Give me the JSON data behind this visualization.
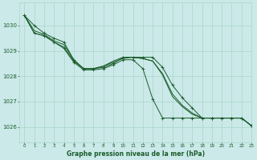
{
  "background_color": "#cbe9e9",
  "grid_color": "#a8d5c8",
  "line_color": "#1a5c2a",
  "xlabel": "Graphe pression niveau de la mer (hPa)",
  "xlim": [
    -0.5,
    23
  ],
  "ylim": [
    1025.4,
    1030.9
  ],
  "yticks": [
    1026,
    1027,
    1028,
    1029,
    1030
  ],
  "xticks": [
    0,
    1,
    2,
    3,
    4,
    5,
    6,
    7,
    8,
    9,
    10,
    11,
    12,
    13,
    14,
    15,
    16,
    17,
    18,
    19,
    20,
    21,
    22,
    23
  ],
  "series": [
    {
      "x": [
        0,
        1,
        2,
        3,
        4,
        5,
        6,
        7,
        8,
        9,
        10,
        11,
        12,
        13,
        14,
        15,
        16,
        17,
        18,
        19,
        20,
        21,
        22,
        23
      ],
      "y": [
        1030.4,
        1030.0,
        1029.7,
        1029.5,
        1029.35,
        1028.65,
        1028.3,
        1028.3,
        1028.35,
        1028.5,
        1028.75,
        1028.75,
        1028.75,
        1028.75,
        1028.35,
        1027.65,
        1027.15,
        1026.75,
        1026.35,
        1026.35,
        1026.35,
        1026.35,
        1026.35,
        1026.05
      ],
      "has_markers": true
    },
    {
      "x": [
        0,
        1,
        2,
        3,
        4,
        5,
        6,
        7,
        8,
        9,
        10,
        11,
        12,
        13,
        14,
        15,
        16,
        17,
        18,
        19,
        20,
        21,
        22,
        23
      ],
      "y": [
        1030.4,
        1029.8,
        1029.65,
        1029.4,
        1029.25,
        1028.65,
        1028.3,
        1028.3,
        1028.4,
        1028.6,
        1028.75,
        1028.75,
        1028.7,
        1028.6,
        1028.1,
        1027.3,
        1026.85,
        1026.55,
        1026.35,
        1026.35,
        1026.35,
        1026.35,
        1026.35,
        1026.05
      ],
      "has_markers": false
    },
    {
      "x": [
        0,
        1,
        2,
        3,
        4,
        5,
        6,
        7,
        8,
        9,
        10,
        11,
        12,
        13,
        14,
        15,
        16,
        17,
        18,
        19,
        20,
        21,
        22,
        23
      ],
      "y": [
        1030.4,
        1029.7,
        1029.6,
        1029.35,
        1029.15,
        1028.6,
        1028.3,
        1028.3,
        1028.4,
        1028.55,
        1028.7,
        1028.75,
        1028.7,
        1028.6,
        1028.05,
        1027.2,
        1026.8,
        1026.5,
        1026.35,
        1026.35,
        1026.35,
        1026.35,
        1026.35,
        1026.05
      ],
      "has_markers": false
    },
    {
      "x": [
        0,
        1,
        2,
        3,
        4,
        5,
        6,
        7,
        8,
        9,
        10,
        11,
        12,
        13,
        14,
        15,
        16,
        17,
        18,
        19,
        20,
        21,
        22,
        23
      ],
      "y": [
        1030.4,
        1029.7,
        1029.6,
        1029.35,
        1029.1,
        1028.55,
        1028.25,
        1028.25,
        1028.3,
        1028.45,
        1028.65,
        1028.65,
        1028.3,
        1027.1,
        1026.35,
        1026.35,
        1026.35,
        1026.35,
        1026.35,
        1026.35,
        1026.35,
        1026.35,
        1026.35,
        1026.05
      ],
      "has_markers": true
    }
  ],
  "figsize": [
    3.2,
    2.0
  ],
  "dpi": 100
}
